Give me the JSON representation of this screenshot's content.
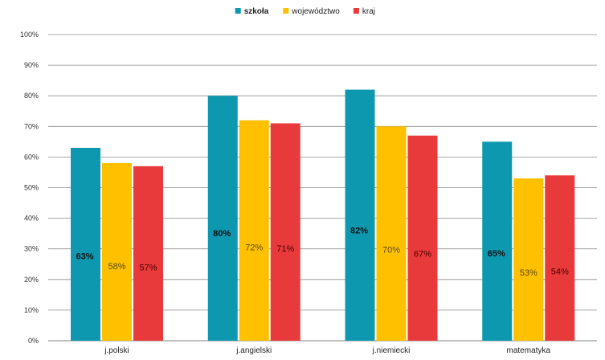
{
  "chart_data": {
    "type": "bar",
    "categories": [
      "j.polski",
      "j.angielski",
      "j.niemiecki",
      "matematyka"
    ],
    "series": [
      {
        "name": "szkoła",
        "values": [
          63,
          80,
          82,
          65
        ],
        "labels": [
          "63%",
          "80%",
          "82%",
          "65%"
        ],
        "color": "#0e98b0",
        "label_color": "#111111",
        "bold": true
      },
      {
        "name": "województwo",
        "values": [
          58,
          72,
          70,
          53
        ],
        "labels": [
          "58%",
          "72%",
          "70%",
          "53%"
        ],
        "color": "#ffc000",
        "label_color": "#5a4a00",
        "bold": false
      },
      {
        "name": "kraj",
        "values": [
          57,
          71,
          67,
          54
        ],
        "labels": [
          "57%",
          "71%",
          "67%",
          "54%"
        ],
        "color": "#e83a3a",
        "label_color": "#4a0000",
        "bold": false
      }
    ],
    "ylim": [
      0,
      100
    ],
    "yticks": [
      0,
      10,
      20,
      30,
      40,
      50,
      60,
      70,
      80,
      90,
      100
    ],
    "ytick_labels": [
      "0%",
      "10%",
      "20%",
      "30%",
      "40%",
      "50%",
      "60%",
      "70%",
      "80%",
      "90%",
      "100%"
    ],
    "grid": true,
    "legend_position": "top-center",
    "title": "",
    "xlabel": "",
    "ylabel": ""
  }
}
